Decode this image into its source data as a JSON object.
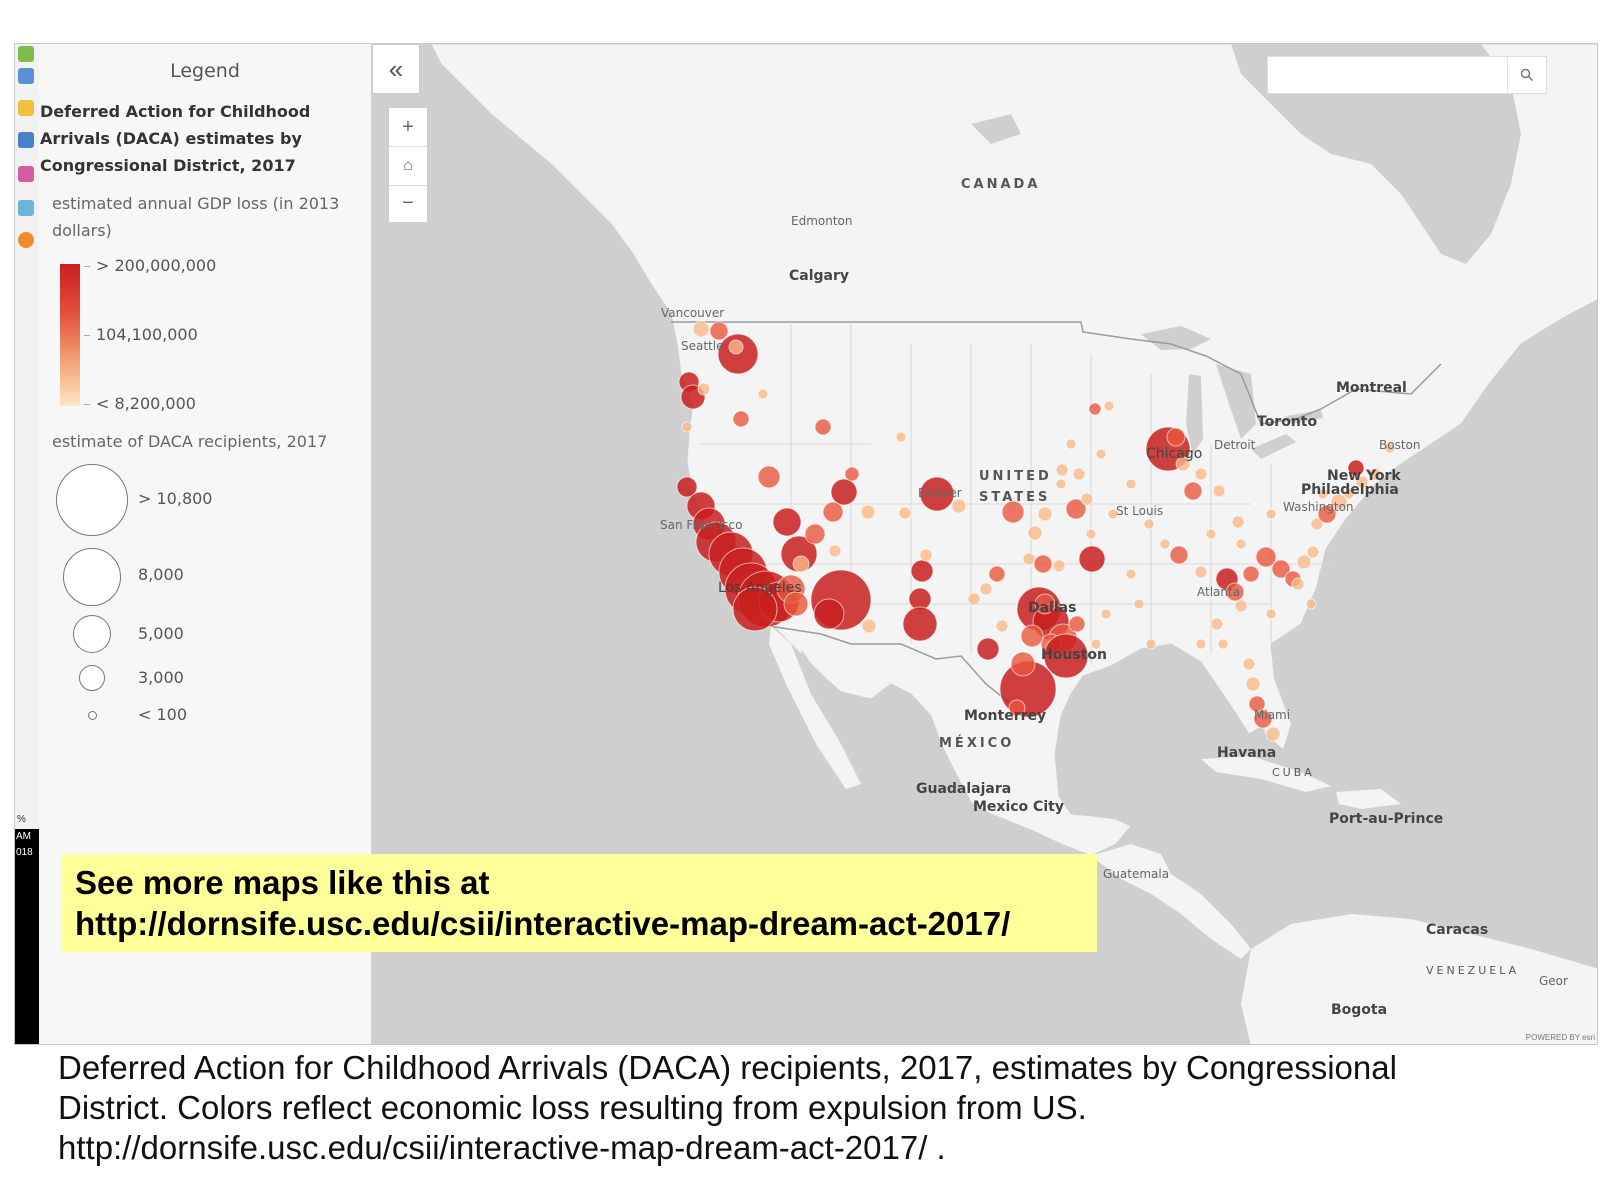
{
  "legend": {
    "title": "Legend",
    "layer_title": "Deferred Action for Childhood Arrivals (DACA) estimates by Congressional District, 2017",
    "color_field_label": "estimated annual GDP loss (in 2013 dollars)",
    "color_stops": [
      {
        "label": "> 200,000,000",
        "color": "#c81e1e"
      },
      {
        "label": "104,100,000",
        "color": "#f29a6d"
      },
      {
        "label": "< 8,200,000",
        "color": "#fde6c4"
      }
    ],
    "size_field_label": "estimate of DACA recipients, 2017",
    "size_stops": [
      {
        "label": "> 10,800",
        "value": 10800
      },
      {
        "label": "8,000",
        "value": 8000
      },
      {
        "label": "5,000",
        "value": 5000
      },
      {
        "label": "3,000",
        "value": 3000
      },
      {
        "label": "< 100",
        "value": 100
      }
    ]
  },
  "left_strip": {
    "pct": "%",
    "line1": "AM",
    "line2": "018"
  },
  "map_controls": {
    "collapse": "«",
    "zoom_in": "+",
    "home": "⌂",
    "zoom_out": "−",
    "search_placeholder": "",
    "search_icon": "search-icon"
  },
  "places": {
    "canada": "CANADA",
    "edmonton": "Edmonton",
    "calgary": "Calgary",
    "vancouver": "Vancouver",
    "seattle": "Seattle",
    "united": "UNITED",
    "states": "STATES",
    "denver": "Denver",
    "san_francisco": "San Francisco",
    "los_angeles": "Los Angeles",
    "chicago": "Chicago",
    "detroit": "Detroit",
    "toronto": "Toronto",
    "montreal": "Montreal",
    "boston": "Boston",
    "new_york": "New York",
    "philadelphia": "Philadelphia",
    "washington": "Washington",
    "st_louis": "St Louis",
    "atlanta": "Atlanta",
    "dallas": "Dallas",
    "houston": "Houston",
    "miami": "Miami",
    "monterrey": "Monterrey",
    "mexico": "MÉXICO",
    "havana": "Havana",
    "cuba": "CUBA",
    "guadalajara": "Guadalajara",
    "mexico_city": "Mexico City",
    "port_au_prince": "Port-au-Prince",
    "guatemala": "Guatemala",
    "caracas": "Caracas",
    "venezuela": "VENEZUELA",
    "bogota": "Bogota",
    "geor": "Geor"
  },
  "attribution": "POWERED BY esri",
  "banner": {
    "line1": "See more maps like this at",
    "line2": "http://dornsife.usc.edu/csii/interactive-map-dream-act-2017/"
  },
  "caption": {
    "line1": "Deferred Action for Childhood Arrivals (DACA) recipients, 2017, estimates by Congressional",
    "line2": "District.  Colors reflect economic loss resulting from expulsion from US.",
    "line3": "http://dornsife.usc.edu/csii/interactive-map-dream-act-2017/ ."
  },
  "colors": {
    "land": "#f4f4f4",
    "water": "#cfcfcf",
    "high": "#c81e1e",
    "mid": "#e8583e",
    "low": "#f7b98a"
  }
}
